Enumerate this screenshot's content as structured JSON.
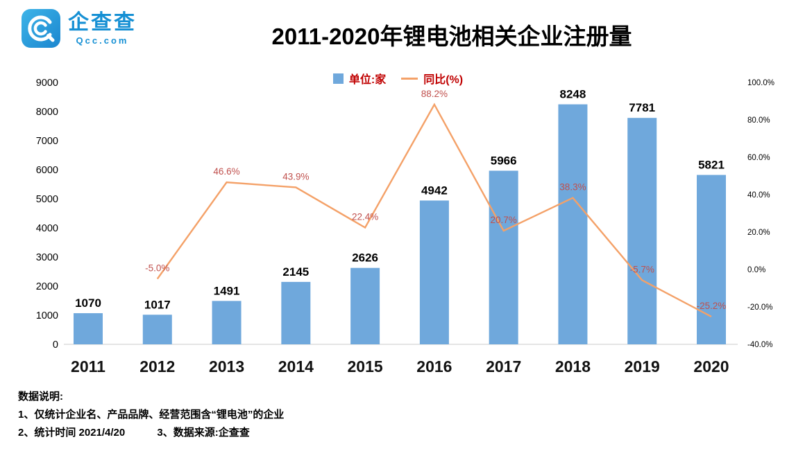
{
  "logo": {
    "brand": "企查查",
    "domain": "Qcc.com"
  },
  "title": "2011-2020年锂电池相关企业注册量",
  "legend": {
    "bars": "单位:家",
    "line": "同比(%)"
  },
  "chart_data": {
    "type": "bar+line",
    "title": "2011-2020年锂电池相关企业注册量",
    "categories": [
      "2011",
      "2012",
      "2013",
      "2014",
      "2015",
      "2016",
      "2017",
      "2018",
      "2019",
      "2020"
    ],
    "series": [
      {
        "name": "单位:家",
        "type": "bar",
        "axis": "left",
        "values": [
          1070,
          1017,
          1491,
          2145,
          2626,
          4942,
          5966,
          8248,
          7781,
          5821
        ]
      },
      {
        "name": "同比(%)",
        "type": "line",
        "axis": "right",
        "values": [
          null,
          -5.0,
          46.6,
          43.9,
          22.4,
          88.2,
          20.7,
          38.3,
          -5.7,
          -25.2
        ]
      }
    ],
    "bar_labels": [
      "1070",
      "1017",
      "1491",
      "2145",
      "2626",
      "4942",
      "5966",
      "8248",
      "7781",
      "5821"
    ],
    "line_labels": [
      null,
      "-5.0%",
      "46.6%",
      "43.9%",
      "22.4%",
      "88.2%",
      "20.7%",
      "38.3%",
      "-5.7%",
      "-25.2%"
    ],
    "left_axis": {
      "min": 0,
      "max": 9000,
      "step": 1000,
      "ticks": [
        "0",
        "1000",
        "2000",
        "3000",
        "4000",
        "5000",
        "6000",
        "7000",
        "8000",
        "9000"
      ]
    },
    "right_axis": {
      "min": -40,
      "max": 100,
      "step": 20,
      "ticks": [
        "-40.0%",
        "-20.0%",
        "0.0%",
        "20.0%",
        "40.0%",
        "60.0%",
        "80.0%",
        "100.0%"
      ]
    },
    "grid": false,
    "legend_position": "top-center"
  },
  "footer": {
    "heading": "数据说明:",
    "line1": "1、仅统计企业名、产品品牌、经营范围含“锂电池”的企业",
    "line2_left": "2、统计时间 2021/4/20",
    "line2_right": "3、数据来源:企查查"
  },
  "colors": {
    "bar": "#6FA8DC",
    "line": "#F4A168",
    "value_label": "#C0504D",
    "legend_text": "#C00000",
    "brand_blue": "#1690D4"
  }
}
